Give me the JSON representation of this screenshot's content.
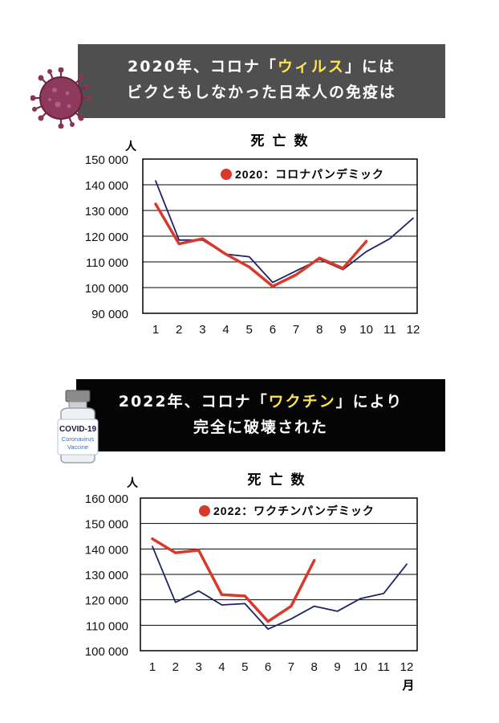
{
  "banner1": {
    "line1_pre": "2020年、コロナ「",
    "line1_hl": "ウィルス",
    "line1_post": "」には",
    "line2": "ビクともしなかった日本人の免疫は"
  },
  "banner2": {
    "line1_pre": "2022年、コロナ「",
    "line1_hl": "ワクチン",
    "line1_post": "」により",
    "line2": "完全に破壊された"
  },
  "vaccine_label": {
    "title": "COVID-19",
    "sub1": "Coronavirus",
    "sub2": "Vaccine"
  },
  "icons": {
    "virus": "coronavirus-icon",
    "vaccine": "vaccine-vial-icon"
  },
  "colors": {
    "highlight": "#ffe44d",
    "red_series": "#d8392b",
    "navy_series": "#1f2366"
  },
  "chart_data": [
    {
      "type": "line",
      "title": "死亡数",
      "ylabel": "人",
      "xlabel": "",
      "x": [
        1,
        2,
        3,
        4,
        5,
        6,
        7,
        8,
        9,
        10,
        11,
        12
      ],
      "ylim": [
        90000,
        150000
      ],
      "yticks": [
        "150 000",
        "140 000",
        "130 000",
        "120 000",
        "110 000",
        "100 000",
        "90 000"
      ],
      "ytick_values": [
        150000,
        140000,
        130000,
        120000,
        110000,
        100000,
        90000
      ],
      "grid": true,
      "legend_position": "top-right",
      "series": [
        {
          "name": "2020：コロナパンデミック",
          "color": "#d8392b",
          "values": [
            132500,
            117000,
            119000,
            113000,
            108000,
            100500,
            105000,
            111500,
            107500,
            118000,
            null,
            null
          ]
        },
        {
          "name": "",
          "color": "#1f2366",
          "values": [
            141500,
            118500,
            118500,
            113000,
            112000,
            102000,
            106500,
            111000,
            107000,
            114000,
            119000,
            127000
          ]
        }
      ]
    },
    {
      "type": "line",
      "title": "死亡数",
      "ylabel": "人",
      "xlabel": "月",
      "x": [
        1,
        2,
        3,
        4,
        5,
        6,
        7,
        8,
        9,
        10,
        11,
        12
      ],
      "ylim": [
        100000,
        160000
      ],
      "yticks": [
        "160 000",
        "150 000",
        "140 000",
        "130 000",
        "120 000",
        "110 000",
        "100 000"
      ],
      "ytick_values": [
        160000,
        150000,
        140000,
        130000,
        120000,
        110000,
        100000
      ],
      "grid": true,
      "legend_position": "top-right",
      "series": [
        {
          "name": "2022：ワクチンパンデミック",
          "color": "#d8392b",
          "values": [
            144000,
            138500,
            139500,
            122000,
            121500,
            111500,
            117500,
            135500,
            null,
            null,
            null,
            null
          ]
        },
        {
          "name": "",
          "color": "#1f2366",
          "values": [
            141000,
            119000,
            123500,
            118000,
            118500,
            108500,
            112500,
            117500,
            115500,
            120500,
            122500,
            134000
          ]
        }
      ]
    }
  ]
}
